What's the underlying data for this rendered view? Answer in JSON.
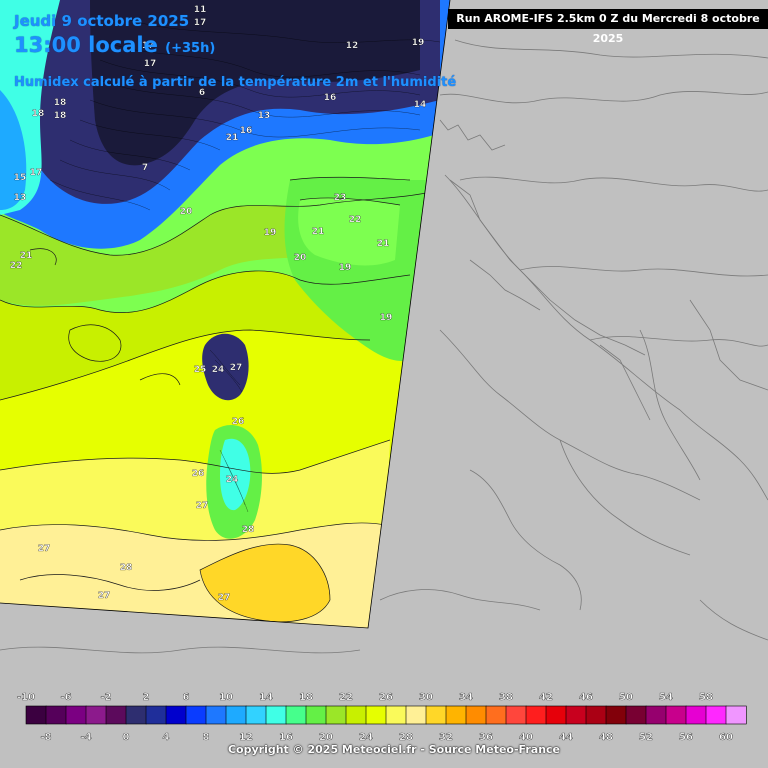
{
  "header": {
    "run_banner": "Run AROME-IFS 2.5km 0 Z du Mercredi 8 octobre 2025",
    "date": "Jeudi 9 octobre 2025",
    "time": "13:00 locale",
    "lead": "(+35h)",
    "description": "Humidex calculé à partir de la température 2m et l'humidité"
  },
  "map_labels": [
    {
      "text": "11"
    },
    {
      "text": "17"
    },
    {
      "text": "17"
    },
    {
      "text": "18"
    },
    {
      "text": "12"
    },
    {
      "text": "19"
    },
    {
      "text": "18"
    },
    {
      "text": "16"
    },
    {
      "text": "14"
    },
    {
      "text": "15"
    },
    {
      "text": "18"
    },
    {
      "text": "17"
    },
    {
      "text": "6"
    },
    {
      "text": "13"
    },
    {
      "text": "16"
    },
    {
      "text": "7"
    },
    {
      "text": "17"
    },
    {
      "text": "13"
    },
    {
      "text": "21"
    },
    {
      "text": "20"
    },
    {
      "text": "23"
    },
    {
      "text": "22"
    },
    {
      "text": "19"
    },
    {
      "text": "21"
    },
    {
      "text": "20"
    },
    {
      "text": "22"
    },
    {
      "text": "21"
    },
    {
      "text": "19"
    },
    {
      "text": "19"
    },
    {
      "text": "21"
    },
    {
      "text": "25"
    },
    {
      "text": "24"
    },
    {
      "text": "27"
    },
    {
      "text": "26"
    },
    {
      "text": "26"
    },
    {
      "text": "24"
    },
    {
      "text": "27"
    },
    {
      "text": "28"
    },
    {
      "text": "27"
    },
    {
      "text": "28"
    },
    {
      "text": "27"
    },
    {
      "text": "27"
    }
  ],
  "legend": {
    "top_labels": [
      "-10",
      "-6",
      "-2",
      "2",
      "6",
      "10",
      "14",
      "18",
      "22",
      "26",
      "30",
      "34",
      "38",
      "42",
      "46",
      "50",
      "54",
      "58"
    ],
    "bottom_labels": [
      "-8",
      "-4",
      "0",
      "4",
      "8",
      "12",
      "16",
      "20",
      "24",
      "28",
      "32",
      "36",
      "40",
      "44",
      "48",
      "52",
      "56",
      "60"
    ],
    "colors": [
      "#3b0040",
      "#55005a",
      "#7b0082",
      "#8c1a8c",
      "#5c0a5c",
      "#2e2e70",
      "#1f2e9a",
      "#0000cd",
      "#0a3cff",
      "#1e78ff",
      "#1eaaff",
      "#32d2ff",
      "#40ffe6",
      "#46ff8c",
      "#64f046",
      "#9be628",
      "#c8f000",
      "#e6ff00",
      "#fafa5a",
      "#fff096",
      "#ffd728",
      "#ffb400",
      "#ff8c00",
      "#ff6e1e",
      "#ff463c",
      "#ff1e1e",
      "#e6000a",
      "#c8001e",
      "#aa0014",
      "#82000a",
      "#780032",
      "#96006e",
      "#c8008c",
      "#e600d2",
      "#ff28ff",
      "#f096ff"
    ],
    "copyright": "Copyright © 2025 Meteociel.fr - Source Meteo-France"
  }
}
